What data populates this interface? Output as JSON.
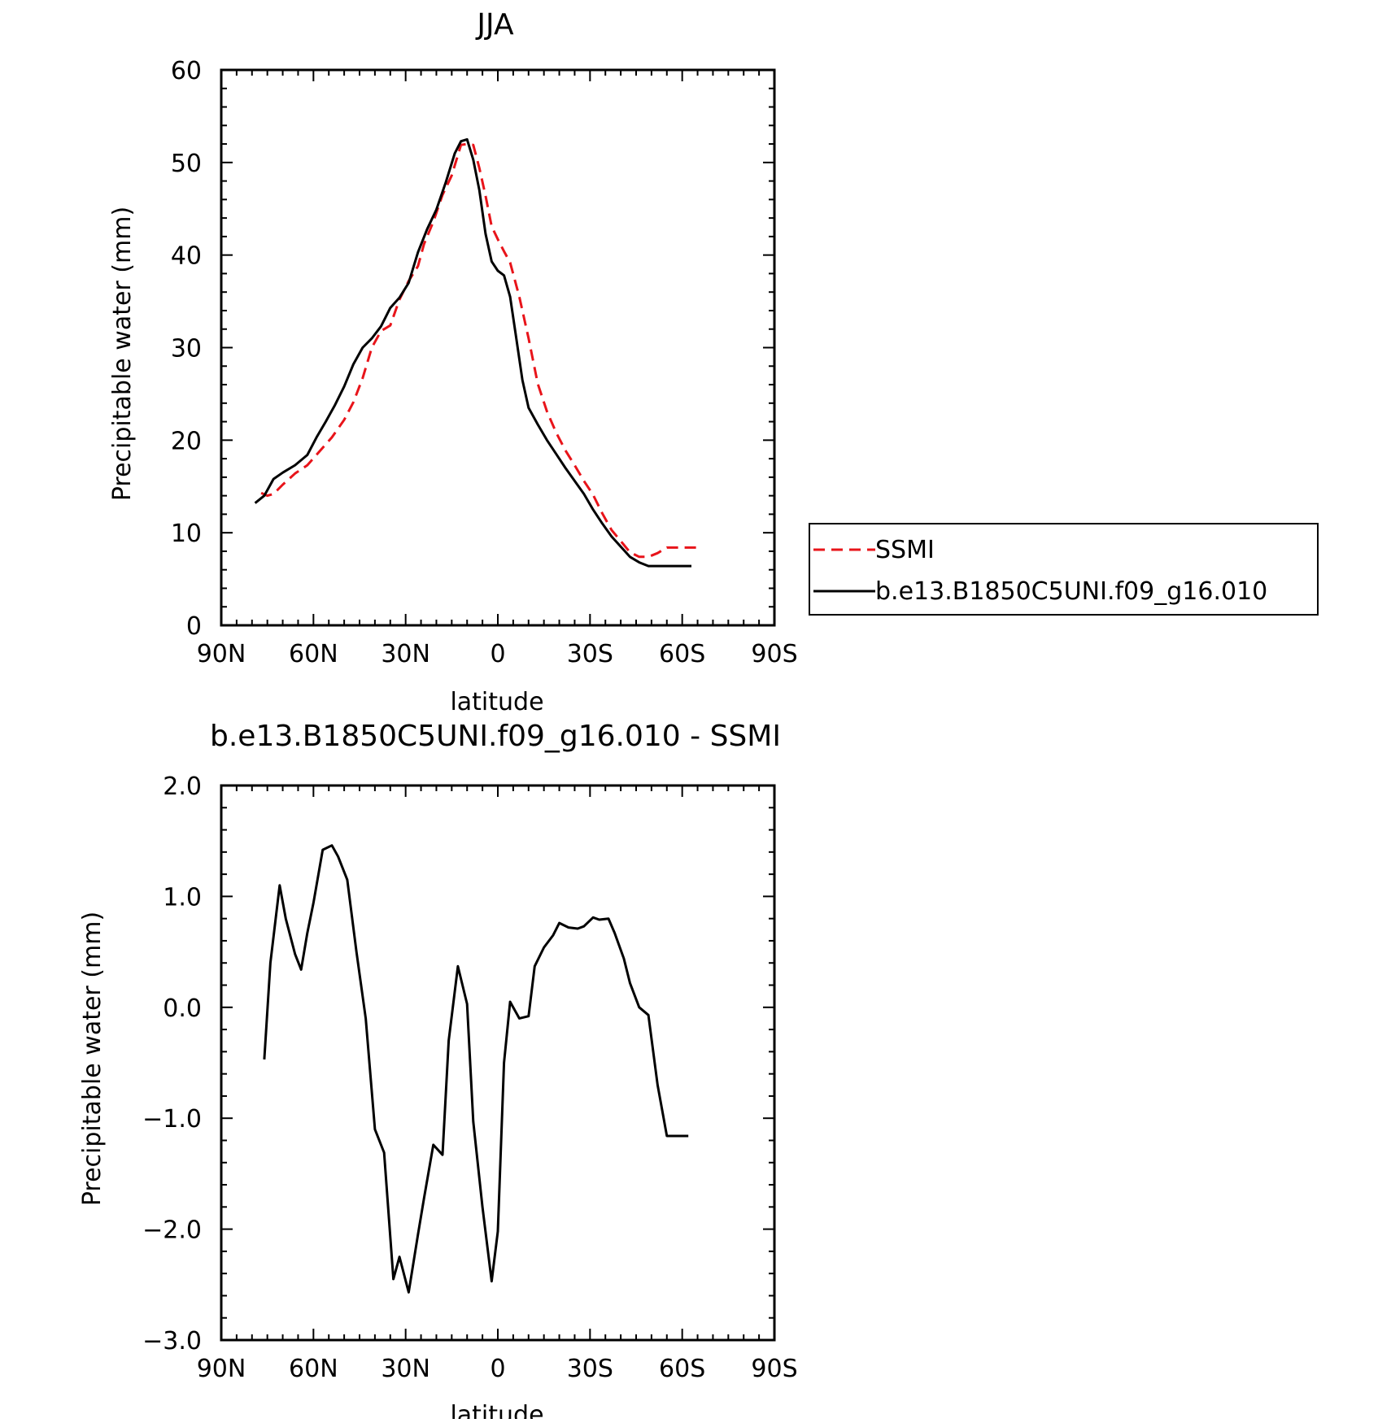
{
  "colors": {
    "model": "#000000",
    "ssmi": "#e8141a",
    "frame": "#000000",
    "background": "#ffffff"
  },
  "chart_data": [
    {
      "type": "line",
      "title": "JJA",
      "xlabel": "latitude",
      "ylabel": "Precipitable water (mm)",
      "xlim": [
        90,
        -90
      ],
      "ylim": [
        0,
        60
      ],
      "x_ticks": [
        {
          "value": 90,
          "label": "90N"
        },
        {
          "value": 60,
          "label": "60N"
        },
        {
          "value": 30,
          "label": "30N"
        },
        {
          "value": 0,
          "label": "0"
        },
        {
          "value": -30,
          "label": "30S"
        },
        {
          "value": -60,
          "label": "60S"
        },
        {
          "value": -90,
          "label": "90S"
        }
      ],
      "y_ticks": [
        {
          "value": 0,
          "label": "0"
        },
        {
          "value": 10,
          "label": "10"
        },
        {
          "value": 20,
          "label": "20"
        },
        {
          "value": 30,
          "label": "30"
        },
        {
          "value": 40,
          "label": "40"
        },
        {
          "value": 50,
          "label": "50"
        },
        {
          "value": 60,
          "label": "60"
        }
      ],
      "legend": {
        "position": "right",
        "entries": [
          {
            "name": "SSMI",
            "style": "dashed",
            "color": "#e8141a"
          },
          {
            "name": "b.e13.B1850C5UNI.f09_g16.010",
            "style": "solid",
            "color": "#000000"
          }
        ]
      },
      "series": [
        {
          "name": "SSMI",
          "style": "dashed",
          "color": "#e8141a",
          "x": [
            77,
            75,
            73,
            70,
            66,
            62,
            58,
            54,
            50,
            47,
            44,
            41,
            38,
            35,
            32,
            29,
            26,
            24,
            21,
            18,
            15,
            12,
            10,
            8,
            6,
            4,
            2,
            0,
            -2,
            -4,
            -7,
            -10,
            -13,
            -16,
            -19,
            -22,
            -25,
            -28,
            -31,
            -34,
            -37,
            -40,
            -43,
            -46,
            -49,
            -52,
            -55,
            -58,
            -61,
            -64,
            -66
          ],
          "y": [
            14.3,
            14.0,
            14.2,
            15.2,
            16.4,
            17.3,
            18.8,
            20.3,
            22.2,
            24.1,
            26.7,
            30.0,
            31.8,
            32.4,
            35.2,
            37.2,
            38.8,
            41.2,
            43.6,
            46.5,
            48.6,
            51.9,
            52.0,
            51.9,
            49.4,
            46.4,
            43.1,
            41.7,
            40.4,
            39.2,
            35.5,
            31.0,
            26.1,
            23.1,
            20.8,
            18.9,
            17.3,
            15.6,
            14.1,
            12.1,
            10.3,
            9.1,
            7.9,
            7.4,
            7.4,
            7.8,
            8.4,
            8.4,
            8.4,
            8.4,
            8.4
          ]
        },
        {
          "name": "b.e13.B1850C5UNI.f09_g16.010",
          "style": "solid",
          "color": "#000000",
          "x": [
            79,
            76,
            73,
            70,
            66,
            62,
            59,
            56,
            53,
            50,
            47,
            44,
            41,
            38,
            35,
            32,
            29,
            26,
            23,
            20,
            17,
            14,
            12,
            10,
            8,
            6,
            4,
            2,
            0,
            -2,
            -4,
            -6,
            -8,
            -10,
            -13,
            -16,
            -19,
            -22,
            -25,
            -28,
            -31,
            -34,
            -37,
            -40,
            -43,
            -46,
            -49,
            -52,
            -55,
            -58,
            -61,
            -63
          ],
          "y": [
            13.2,
            14.0,
            15.8,
            16.5,
            17.3,
            18.4,
            20.3,
            22.0,
            23.8,
            25.8,
            28.2,
            30.0,
            31.0,
            32.3,
            34.3,
            35.4,
            37.0,
            40.3,
            42.8,
            44.9,
            47.8,
            51.0,
            52.3,
            52.5,
            50.3,
            47.0,
            42.3,
            39.3,
            38.3,
            37.8,
            35.5,
            31.0,
            26.5,
            23.5,
            21.7,
            20.0,
            18.5,
            17.0,
            15.6,
            14.2,
            12.5,
            11.0,
            9.6,
            8.5,
            7.4,
            6.8,
            6.4,
            6.4,
            6.4,
            6.4,
            6.4,
            6.4
          ]
        }
      ]
    },
    {
      "type": "line",
      "title": "b.e13.B1850C5UNI.f09_g16.010 - SSMI",
      "xlabel": "latitude",
      "ylabel": "Precipitable water (mm)",
      "xlim": [
        90,
        -90
      ],
      "ylim": [
        -3.0,
        2.0
      ],
      "x_ticks": [
        {
          "value": 90,
          "label": "90N"
        },
        {
          "value": 60,
          "label": "60N"
        },
        {
          "value": 30,
          "label": "30N"
        },
        {
          "value": 0,
          "label": "0"
        },
        {
          "value": -30,
          "label": "30S"
        },
        {
          "value": -60,
          "label": "60S"
        },
        {
          "value": -90,
          "label": "90S"
        }
      ],
      "y_ticks": [
        {
          "value": -3.0,
          "label": "−3.0"
        },
        {
          "value": -2.0,
          "label": "−2.0"
        },
        {
          "value": -1.0,
          "label": "−1.0"
        },
        {
          "value": 0.0,
          "label": "0.0"
        },
        {
          "value": 1.0,
          "label": "1.0"
        },
        {
          "value": 2.0,
          "label": "2.0"
        }
      ],
      "series": [
        {
          "style": "solid",
          "color": "#000000",
          "x": [
            76,
            74,
            71,
            69,
            66,
            64,
            62,
            60,
            57,
            54,
            52,
            49,
            46,
            43,
            40,
            37,
            34,
            32,
            29,
            26,
            24,
            21,
            18,
            16,
            13,
            10,
            8,
            5,
            2,
            0,
            -2,
            -4,
            -7,
            -10,
            -12,
            -15,
            -18,
            -20,
            -23,
            -26,
            -28,
            -31,
            -33,
            -36,
            -38,
            -41,
            -43,
            -46,
            -49,
            -52,
            -55,
            -57,
            -60,
            -62
          ],
          "y": [
            -0.47,
            0.4,
            1.1,
            0.8,
            0.48,
            0.34,
            0.67,
            0.94,
            1.42,
            1.46,
            1.36,
            1.15,
            0.5,
            -0.1,
            -1.1,
            -1.31,
            -2.45,
            -2.25,
            -2.57,
            -2.05,
            -1.72,
            -1.24,
            -1.33,
            -0.3,
            0.37,
            0.03,
            -1.03,
            -1.8,
            -2.47,
            -2.02,
            -0.5,
            0.05,
            -0.1,
            -0.08,
            0.37,
            0.54,
            0.65,
            0.76,
            0.72,
            0.71,
            0.73,
            0.81,
            0.79,
            0.8,
            0.67,
            0.44,
            0.22,
            0.0,
            -0.07,
            -0.7,
            -1.16,
            -1.16,
            -1.16,
            -1.16
          ]
        }
      ]
    }
  ]
}
